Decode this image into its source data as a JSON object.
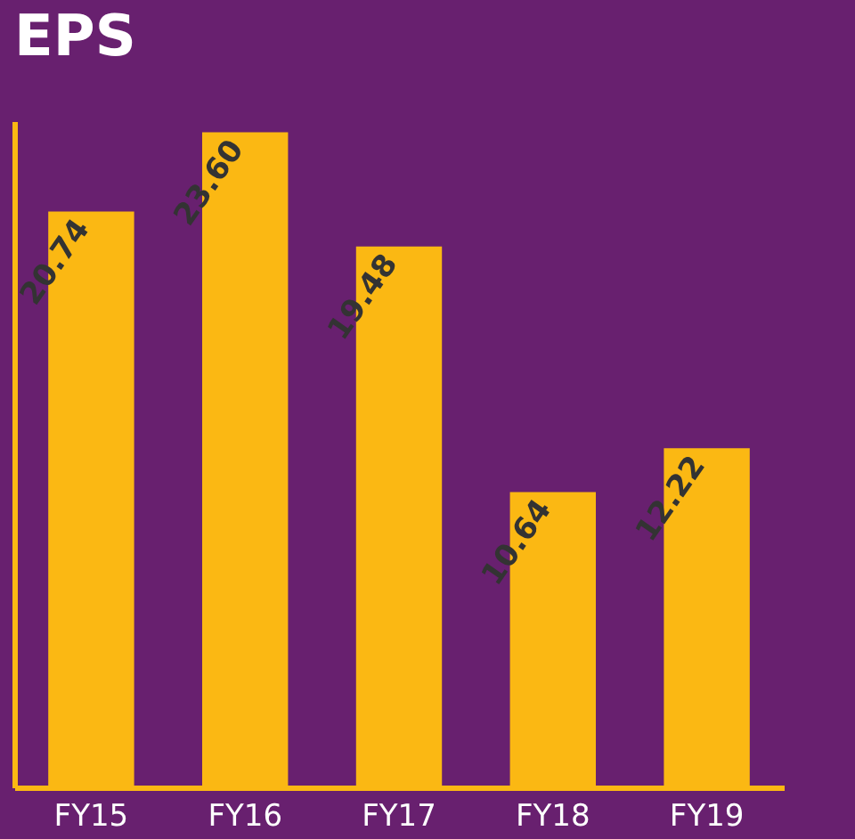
{
  "chart_data": {
    "type": "bar",
    "title": "EPS",
    "categories": [
      "FY15",
      "FY16",
      "FY17",
      "FY18",
      "FY19"
    ],
    "values": [
      20.74,
      23.6,
      19.48,
      10.64,
      12.22
    ],
    "value_labels": [
      "20.74",
      "23.60",
      "19.48",
      "10.64",
      "12.22"
    ],
    "color": "#fbb813",
    "tick_labels": "x"
  }
}
